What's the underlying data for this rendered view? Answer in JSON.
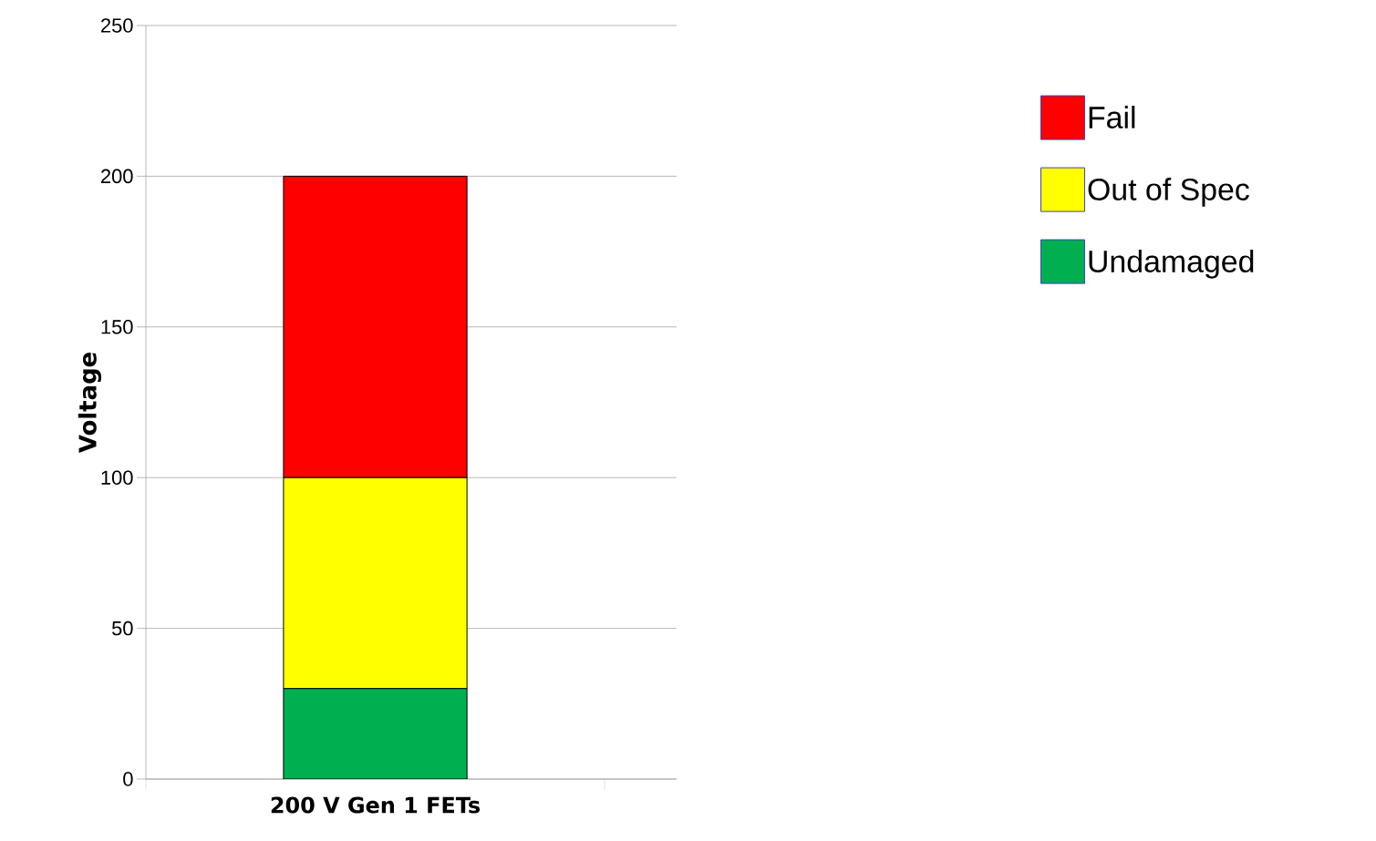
{
  "chart_data": {
    "type": "bar",
    "stacked": true,
    "ylabel": "Voltage",
    "categories": [
      "200 V Gen 1 FETs"
    ],
    "series": [
      {
        "name": "Undamaged",
        "color": "#00b050",
        "values": [
          30
        ]
      },
      {
        "name": "Out of Spec",
        "color": "#ffff00",
        "values": [
          70
        ]
      },
      {
        "name": "Fail",
        "color": "#ff0000",
        "values": [
          100
        ]
      }
    ],
    "ylim": [
      0,
      250
    ],
    "yticks": [
      0,
      50,
      100,
      150,
      200,
      250
    ],
    "grid": "y",
    "legend": "right"
  }
}
